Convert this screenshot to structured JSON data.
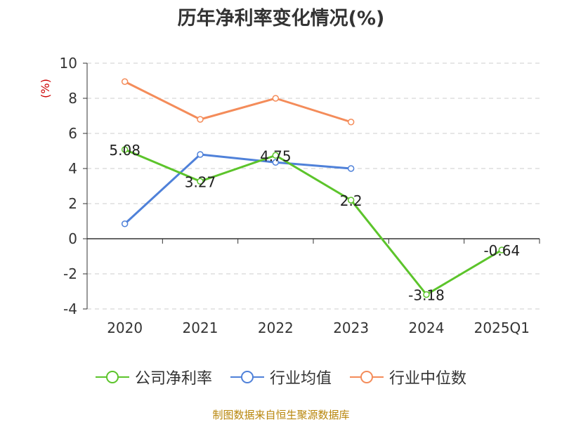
{
  "chart_data": {
    "type": "line",
    "title": "历年净利率变化情况(%)",
    "ylabel": "(%)",
    "categories": [
      "2020",
      "2021",
      "2022",
      "2023",
      "2024",
      "2025Q1"
    ],
    "ylim": [
      -4,
      10
    ],
    "yticks": [
      -4,
      -2,
      0,
      2,
      4,
      6,
      8,
      10
    ],
    "grid": true,
    "legend_position": "bottom",
    "series": [
      {
        "name": "公司净利率",
        "color": "#5cc42b",
        "values": [
          5.08,
          3.27,
          4.75,
          2.2,
          -3.18,
          -0.64
        ],
        "labels": [
          "5.08",
          "3.27",
          "4.75",
          "2.2",
          "-3.18",
          "-0.64"
        ]
      },
      {
        "name": "行业均值",
        "color": "#4f81d9",
        "values": [
          0.85,
          4.8,
          4.35,
          4.0,
          null,
          null
        ]
      },
      {
        "name": "行业中位数",
        "color": "#f48c5a",
        "values": [
          8.95,
          6.8,
          8.0,
          6.65,
          null,
          null
        ]
      }
    ]
  },
  "source_note": "制图数据来自恒生聚源数据库"
}
